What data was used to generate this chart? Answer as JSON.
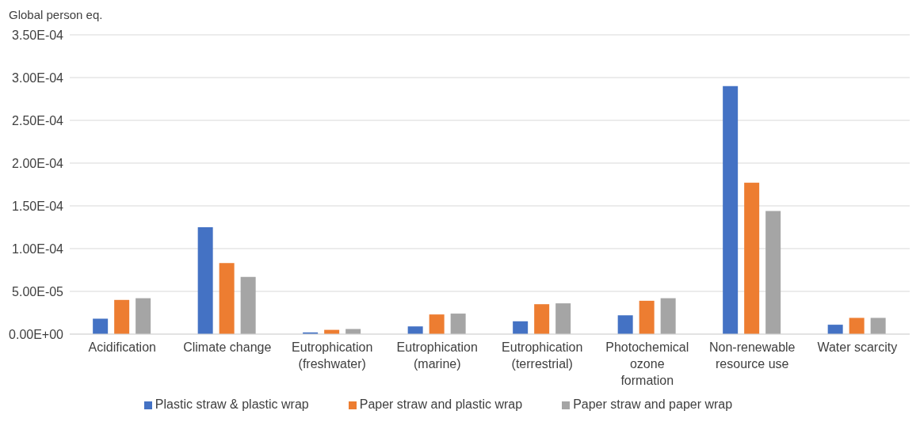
{
  "chart_data": {
    "type": "bar",
    "ylabel": "Global person eq.",
    "categories": [
      "Acidification",
      "Climate change",
      "Eutrophication (freshwater)",
      "Eutrophication (marine)",
      "Eutrophication (terrestrial)",
      "Photochemical ozone formation",
      "Non-renewable resource use",
      "Water scarcity"
    ],
    "series": [
      {
        "name": "Plastic straw & plastic wrap",
        "color": "#4472c4",
        "values": [
          1.8e-05,
          0.000125,
          2e-06,
          9e-06,
          1.5e-05,
          2.2e-05,
          0.00029,
          1.1e-05
        ]
      },
      {
        "name": "Paper straw and plastic wrap",
        "color": "#ed7d31",
        "values": [
          4e-05,
          8.3e-05,
          5e-06,
          2.3e-05,
          3.5e-05,
          3.9e-05,
          0.000177,
          1.9e-05
        ]
      },
      {
        "name": "Paper straw and paper wrap",
        "color": "#a5a5a5",
        "values": [
          4.2e-05,
          6.7e-05,
          6e-06,
          2.4e-05,
          3.6e-05,
          4.2e-05,
          0.000144,
          1.9e-05
        ]
      }
    ],
    "ylim": [
      0,
      0.00035
    ],
    "yticks": [
      {
        "value": 0,
        "label": "0.00E+00"
      },
      {
        "value": 5e-05,
        "label": "5.00E-05"
      },
      {
        "value": 0.0001,
        "label": "1.00E-04"
      },
      {
        "value": 0.00015,
        "label": "1.50E-04"
      },
      {
        "value": 0.0002,
        "label": "2.00E-04"
      },
      {
        "value": 0.00025,
        "label": "2.50E-04"
      },
      {
        "value": 0.0003,
        "label": "3.00E-04"
      },
      {
        "value": 0.00035,
        "label": "3.50E-04"
      }
    ],
    "grid": "y",
    "legend": "bottom"
  }
}
